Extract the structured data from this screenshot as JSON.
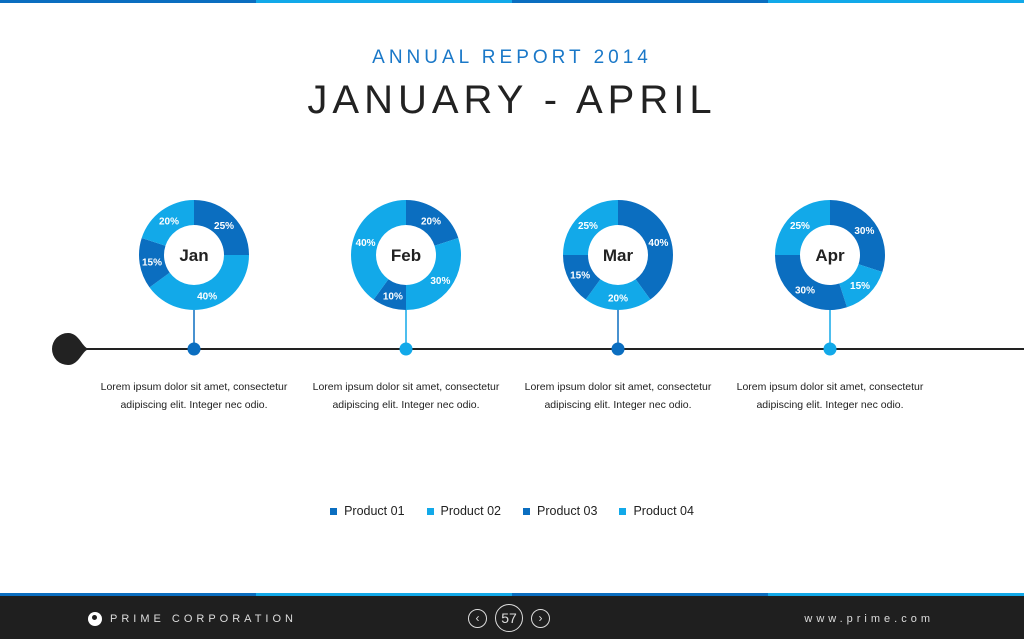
{
  "colors": {
    "dark": "#0b6ec0",
    "light": "#12a9e9"
  },
  "header": {
    "subtitle": "ANNUAL REPORT 2014",
    "title": "JANUARY - APRIL"
  },
  "chart_data": {
    "type": "pie",
    "series_names": [
      "Product 01",
      "Product 02",
      "Product 03",
      "Product 04"
    ],
    "charts": [
      {
        "label": "Jan",
        "values": [
          25,
          40,
          15,
          20
        ]
      },
      {
        "label": "Feb",
        "values": [
          20,
          30,
          10,
          40
        ]
      },
      {
        "label": "Mar",
        "values": [
          40,
          20,
          15,
          25
        ]
      },
      {
        "label": "Apr",
        "values": [
          30,
          15,
          30,
          25
        ]
      }
    ]
  },
  "descriptions": [
    {
      "line1": "Lorem ipsum dolor sit amet, consectetur",
      "line2": "adipiscing elit. Integer nec odio."
    },
    {
      "line1": "Lorem ipsum dolor sit amet, consectetur",
      "line2": "adipiscing elit. Integer nec odio."
    },
    {
      "line1": "Lorem ipsum dolor sit amet, consectetur",
      "line2": "adipiscing elit. Integer nec odio."
    },
    {
      "line1": "Lorem ipsum dolor sit amet, consectetur",
      "line2": "adipiscing elit. Integer nec odio."
    }
  ],
  "legend": [
    "Product 01",
    "Product 02",
    "Product 03",
    "Product 04"
  ],
  "footer": {
    "brand": "PRIME CORPORATION",
    "page": "57",
    "prev": "‹",
    "next": "›",
    "url": "www.prime.com"
  }
}
